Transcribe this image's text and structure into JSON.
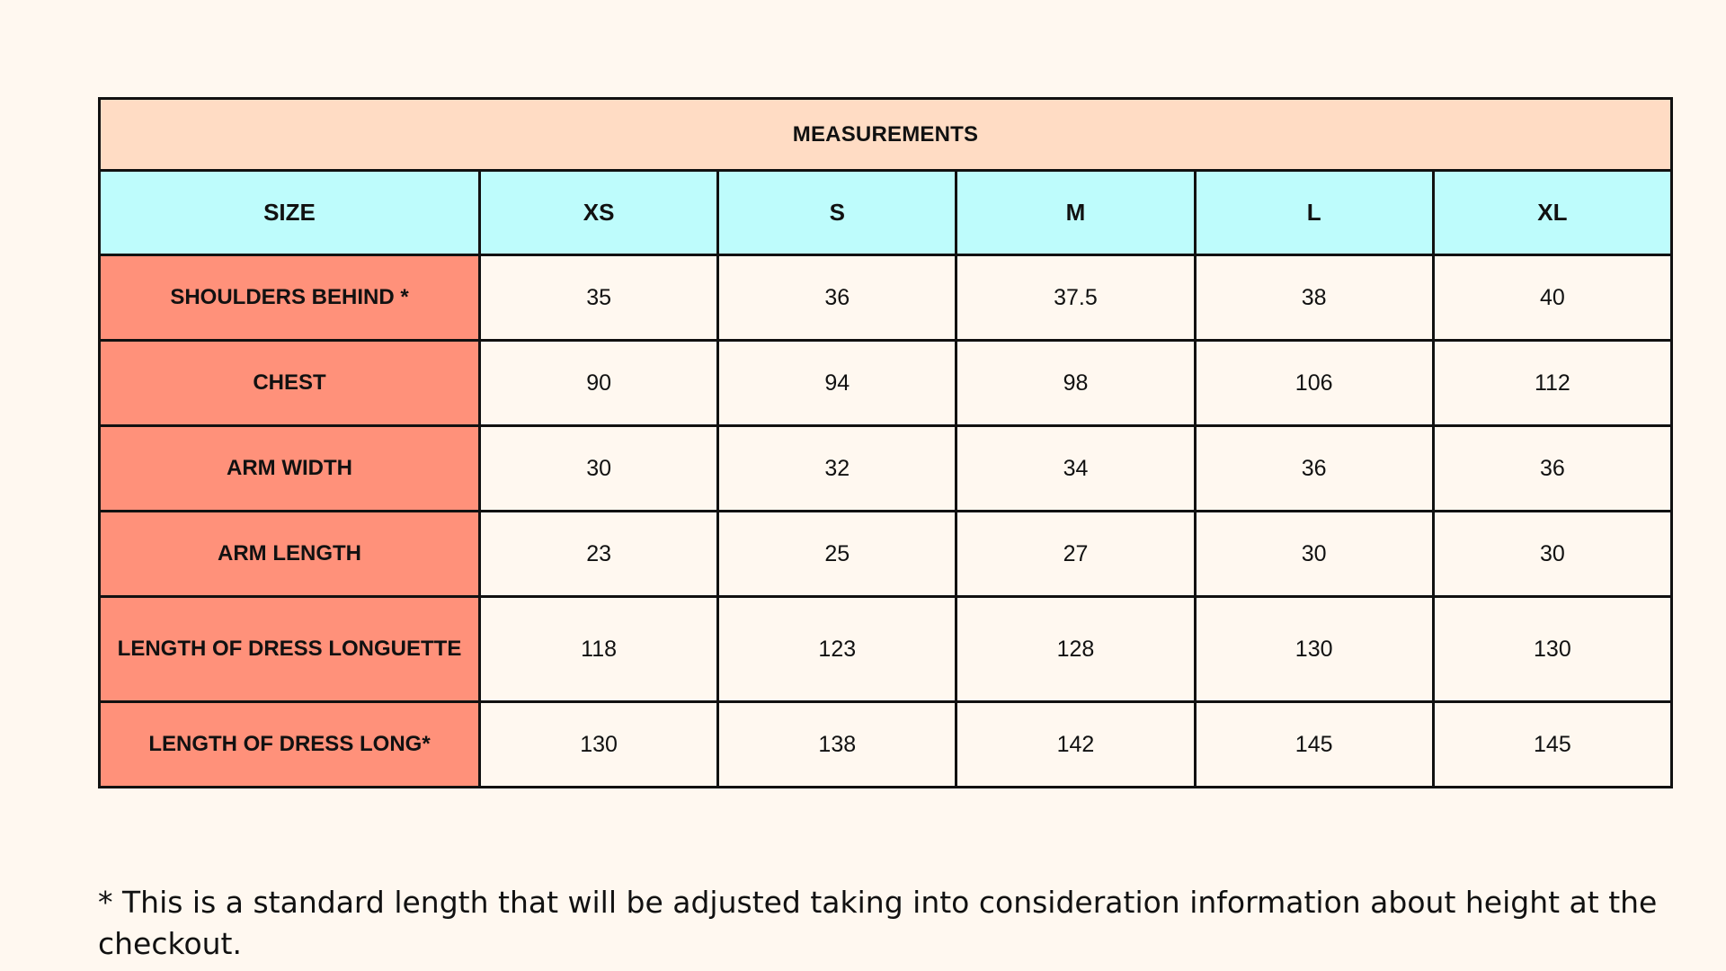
{
  "table": {
    "title": "MEASUREMENTS",
    "header": {
      "label": "SIZE",
      "sizes": [
        "XS",
        "S",
        "M",
        "L",
        "XL"
      ]
    },
    "rows": [
      {
        "label": "SHOULDERS BEHIND *",
        "values": [
          "35",
          "36",
          "37.5",
          "38",
          "40"
        ]
      },
      {
        "label": "CHEST",
        "values": [
          "90",
          "94",
          "98",
          "106",
          "112"
        ]
      },
      {
        "label": "ARM WIDTH",
        "values": [
          "30",
          "32",
          "34",
          "36",
          "36"
        ]
      },
      {
        "label": "ARM LENGTH",
        "values": [
          "23",
          "25",
          "27",
          "30",
          "30"
        ]
      },
      {
        "label": "LENGTH OF DRESS LONGUETTE",
        "values": [
          "118",
          "123",
          "128",
          "130",
          "130"
        ]
      },
      {
        "label": "LENGTH OF DRESS LONG*",
        "values": [
          "130",
          "138",
          "142",
          "145",
          "145"
        ]
      }
    ]
  },
  "footnote": "* This is a standard length that will be adjusted taking into consideration information about height at the checkout.",
  "colors": {
    "background": "#fff8f0",
    "title_fill": "#ffdcc4",
    "header_fill": "#befcfc",
    "label_fill": "#ff917a",
    "border": "#111111"
  }
}
